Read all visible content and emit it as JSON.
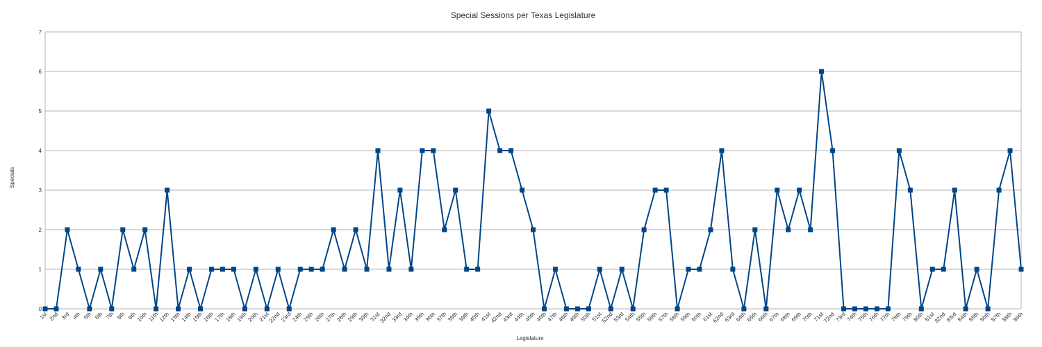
{
  "chart_data": {
    "type": "line",
    "title": "Special Sessions per Texas Legislature",
    "xlabel": "Legislature",
    "ylabel": "Specials",
    "ylim": [
      0,
      7
    ],
    "yticks": [
      "0",
      "1",
      "2",
      "3",
      "4",
      "5",
      "6",
      "7"
    ],
    "grid": true,
    "categories": [
      "1st",
      "2nd",
      "3rd",
      "4th",
      "5th",
      "6th",
      "7th",
      "8th",
      "9th",
      "10th",
      "11th",
      "12th",
      "13th",
      "14th",
      "15th",
      "16th",
      "17th",
      "18th",
      "19th",
      "20th",
      "21st",
      "22nd",
      "23rd",
      "24th",
      "25th",
      "26th",
      "27th",
      "28th",
      "29th",
      "30th",
      "31st",
      "32nd",
      "33rd",
      "34th",
      "35th",
      "36th",
      "37th",
      "38th",
      "39th",
      "40th",
      "41st",
      "42nd",
      "43rd",
      "44th",
      "45th",
      "46th",
      "47th",
      "48th",
      "49th",
      "50th",
      "51st",
      "52nd",
      "53rd",
      "54th",
      "55th",
      "56th",
      "57th",
      "58th",
      "59th",
      "60th",
      "61st",
      "62nd",
      "63rd",
      "64th",
      "65th",
      "66th",
      "67th",
      "68th",
      "69th",
      "70th",
      "71st",
      "72nd",
      "73rd",
      "74th",
      "75th",
      "76th",
      "77th",
      "78th",
      "79th",
      "80th",
      "81st",
      "82nd",
      "83rd",
      "84th",
      "85th",
      "86th",
      "87th",
      "88th",
      "89th"
    ],
    "series": [
      {
        "values": [
          0,
          0,
          2,
          1,
          0,
          1,
          0,
          2,
          1,
          2,
          0,
          3,
          0,
          1,
          0,
          1,
          1,
          1,
          0,
          1,
          0,
          1,
          0,
          1,
          1,
          1,
          2,
          1,
          2,
          1,
          4,
          1,
          3,
          1,
          4,
          4,
          2,
          3,
          1,
          1,
          5,
          4,
          4,
          3,
          2,
          0,
          1,
          0,
          0,
          0,
          1,
          0,
          1,
          0,
          2,
          3,
          3,
          0,
          1,
          1,
          2,
          4,
          1,
          0,
          2,
          0,
          3,
          2,
          3,
          2,
          6,
          4,
          0,
          0,
          0,
          0,
          0,
          4,
          3,
          0,
          1,
          1,
          3,
          0,
          1,
          0,
          3,
          4,
          1
        ],
        "color": "#004586"
      }
    ]
  },
  "colors": {
    "line": "#004586",
    "grid": "#b3b3b3",
    "axis": "#b3b3b3",
    "text": "#333333"
  }
}
